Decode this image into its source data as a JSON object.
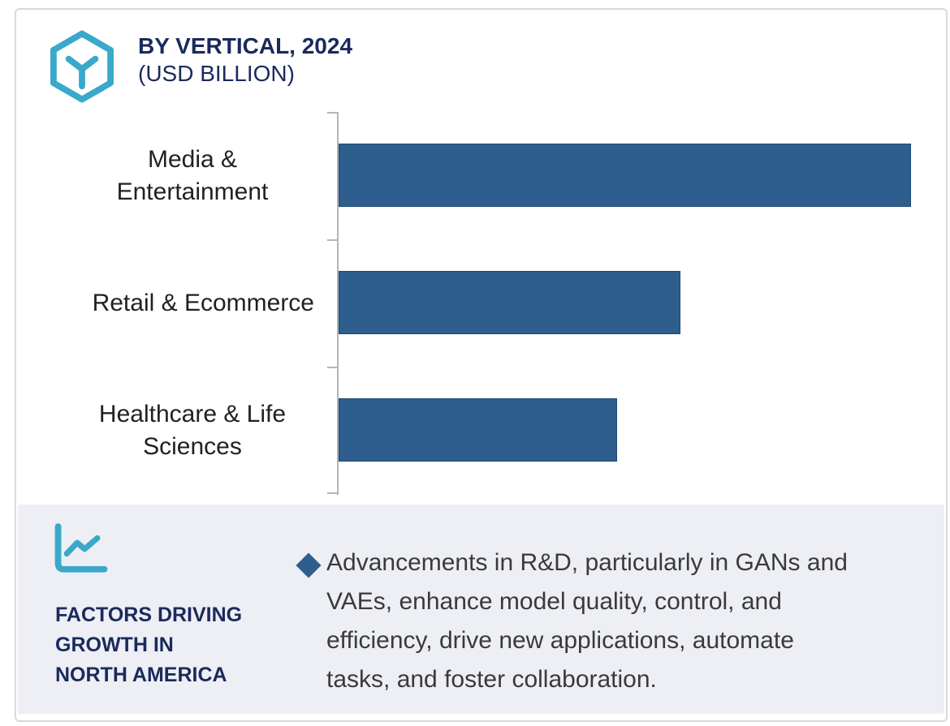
{
  "colors": {
    "accent_teal": "#3AA8CA",
    "navy_heading": "#1A2A5B",
    "bar_blue": "#2D5E8D",
    "panel_background": "#EDEFF4",
    "category_text": "#212121",
    "body_text": "#3A3A3A",
    "card_border": "#D9D9D9",
    "axis_gray": "#B5B5B5"
  },
  "header": {
    "icon": "hexagon-cube-icon",
    "title_line1": "BY VERTICAL, 2024",
    "title_line2": "(USD BILLION)"
  },
  "chart_data": {
    "type": "bar",
    "orientation": "horizontal",
    "title": "BY VERTICAL, 2024 (USD BILLION)",
    "categories": [
      "Media & Entertainment",
      "Retail & Ecommerce",
      "Healthcare & Life Sciences"
    ],
    "values": [
      100,
      59.7,
      48.6
    ],
    "value_scale": "relative, longest bar = 100 (no numeric axis labels visible in image)",
    "xlabel": "",
    "ylabel": "",
    "xlim": [
      0,
      104
    ],
    "grid": false,
    "legend": false,
    "bar_color": "#2D5E8D"
  },
  "factors": {
    "icon": "line-chart-icon",
    "heading": "FACTORS DRIVING\nGROWTH IN\nNORTH AMERICA",
    "bullets": [
      {
        "marker": "diamond",
        "text": "Advancements in R&D, particularly in GANs and\nVAEs, enhance model quality, control, and\nefficiency, drive new applications, automate\ntasks, and foster collaboration."
      }
    ]
  }
}
